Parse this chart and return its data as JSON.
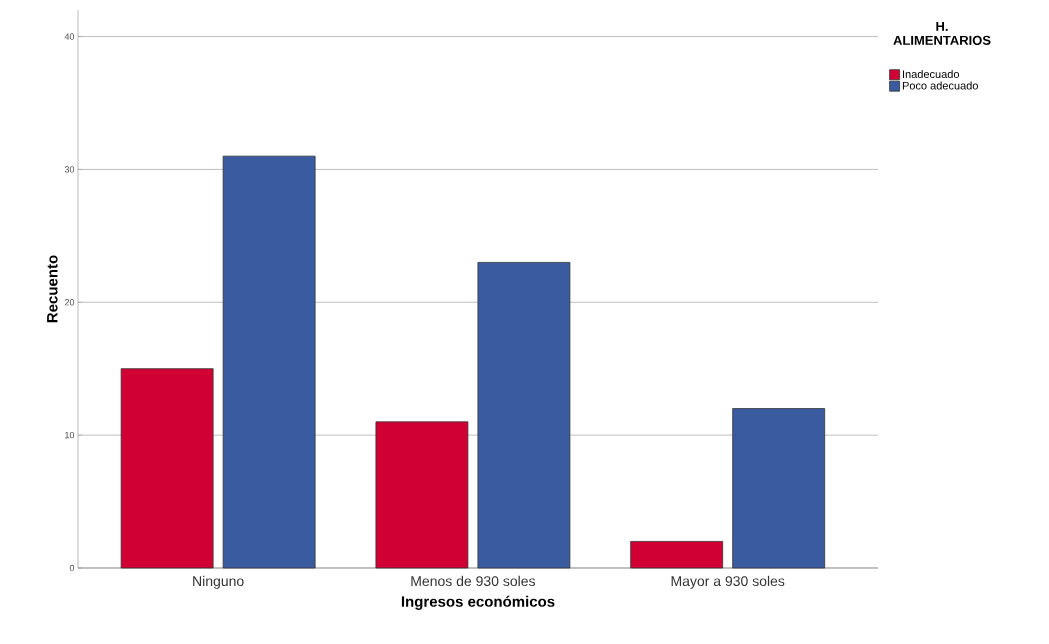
{
  "chart_data": {
    "type": "bar",
    "xlabel": "Ingresos económicos",
    "ylabel": "Recuento",
    "legend_title": "H. ALIMENTARIOS",
    "categories": [
      "Ninguno",
      "Menos de 930 soles",
      "Mayor a 930 soles"
    ],
    "series": [
      {
        "name": "Inadecuado",
        "color": "#d10034",
        "values": [
          15,
          11,
          2
        ]
      },
      {
        "name": "Poco adecuado",
        "color": "#3a5ba0",
        "values": [
          31,
          23,
          12
        ]
      }
    ],
    "ylim": [
      0,
      42
    ],
    "yticks": [
      0,
      10,
      20,
      30,
      40
    ],
    "grid": "y",
    "legend": "top right"
  }
}
